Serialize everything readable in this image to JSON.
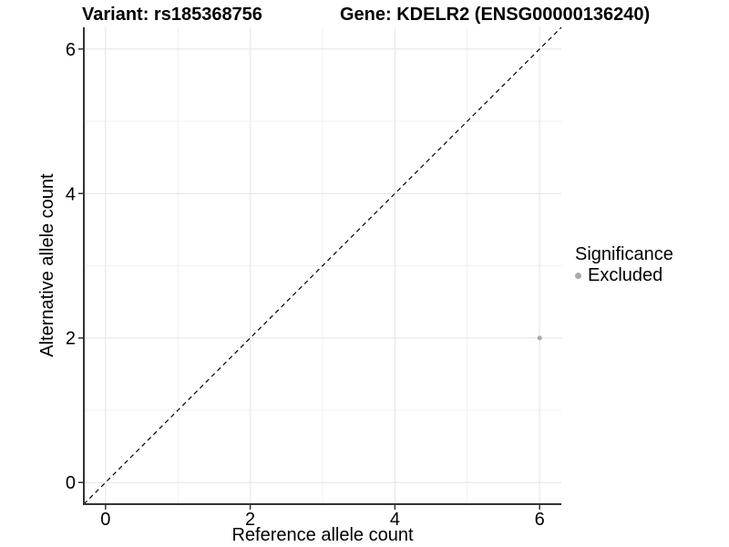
{
  "chart_data": {
    "type": "scatter",
    "title_left": "Variant: rs185368756",
    "title_right": "Gene: KDELR2 (ENSG00000136240)",
    "xlabel": "Reference allele count",
    "ylabel": "Alternative allele count",
    "xlim": [
      -0.3,
      6.3
    ],
    "ylim": [
      -0.3,
      6.3
    ],
    "x_ticks": [
      0,
      2,
      4,
      6
    ],
    "y_ticks": [
      0,
      2,
      4,
      6
    ],
    "x_minor_ticks": [
      1,
      3,
      5
    ],
    "y_minor_ticks": [
      1,
      3,
      5
    ],
    "grid": "on",
    "legend_position": "right",
    "legend_title": "Significance",
    "reference_line": {
      "type": "identity",
      "style": "dashed",
      "from": [
        -0.3,
        -0.3
      ],
      "to": [
        6.3,
        6.3
      ],
      "color": "#000000"
    },
    "series": [
      {
        "name": "Excluded",
        "color": "#aaaaaa",
        "points": [
          {
            "x": 6,
            "y": 2
          }
        ]
      }
    ],
    "colors": {
      "background": "#ffffff",
      "major_grid": "#e4e4e4",
      "minor_grid": "#f0f0f0",
      "axis_line": "#333333",
      "tick_mark": "#333333",
      "text": "#000000",
      "point": "#aaaaaa"
    }
  }
}
